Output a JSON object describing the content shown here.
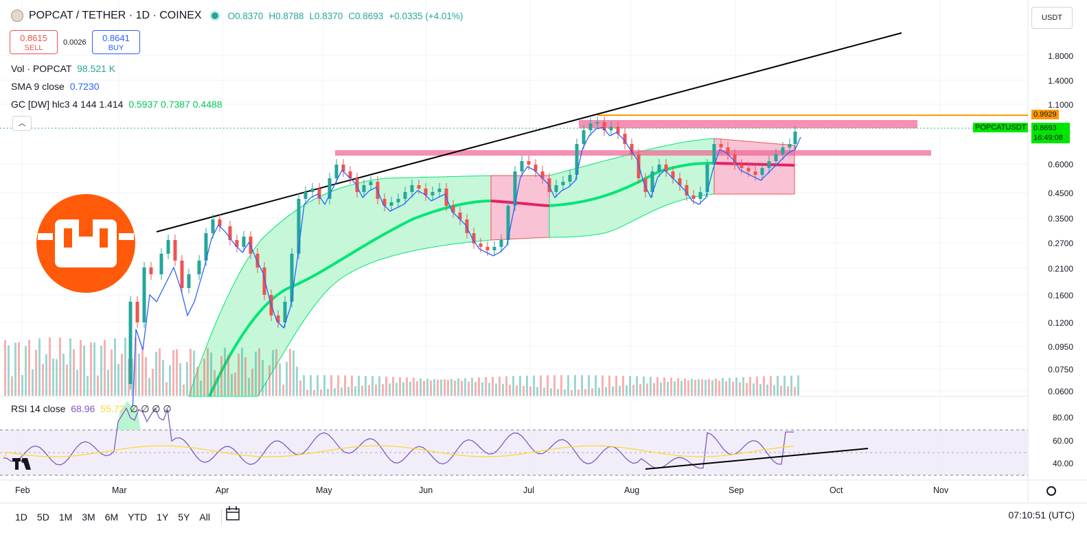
{
  "header": {
    "symbol": "POPCAT / TETHER · 1D · COINEX",
    "open": "O0.8370",
    "high": "H0.8788",
    "low": "L0.8370",
    "close": "C0.8693",
    "change": "+0.0335 (+4.01%)"
  },
  "trade": {
    "sell_price": "0.8615",
    "sell_label": "SELL",
    "spread": "0.0026",
    "buy_price": "0.8641",
    "buy_label": "BUY"
  },
  "indicators": [
    {
      "name": "Vol · POPCAT",
      "value": "98.521 K",
      "color": "#26a69a"
    },
    {
      "name": "SMA 9 close",
      "value": "0.7230",
      "color": "#2962ff"
    },
    {
      "name": "GC [DW] hlc3 4 144 1.414",
      "value": "0.5937  0.7387  0.4488",
      "color": "#00e676"
    }
  ],
  "currency_selector": "USDT",
  "price_axis": [
    "1.8000",
    "1.4000",
    "1.1000",
    "0.6000",
    "0.4500",
    "0.3500",
    "0.2700",
    "0.2100",
    "0.1600",
    "0.1200",
    "0.0950",
    "0.0750",
    "0.0600"
  ],
  "price_tags": {
    "level": "0.9929",
    "symbol": "POPCATUSDT",
    "last": "0.8693",
    "countdown": "16:49:08"
  },
  "rsi": {
    "label": "RSI 14 close",
    "value1": "68.96",
    "value2": "55.72",
    "tail": "∅ ∅ ∅ ∅",
    "axis": [
      "80.00",
      "60.00",
      "40.00"
    ]
  },
  "time_axis": [
    "Feb",
    "Mar",
    "Apr",
    "May",
    "Jun",
    "Jul",
    "Aug",
    "Sep",
    "Oct",
    "Nov"
  ],
  "timeframes": [
    "1D",
    "5D",
    "1M",
    "3M",
    "6M",
    "YTD",
    "1Y",
    "5Y",
    "All"
  ],
  "clock": "07:10:51 (UTC)",
  "logo_text": "TV",
  "colors": {
    "up": "#26a69a",
    "down": "#ef5350",
    "sma": "#2962ff",
    "band": "#00e676",
    "level": "#ff9800"
  }
}
